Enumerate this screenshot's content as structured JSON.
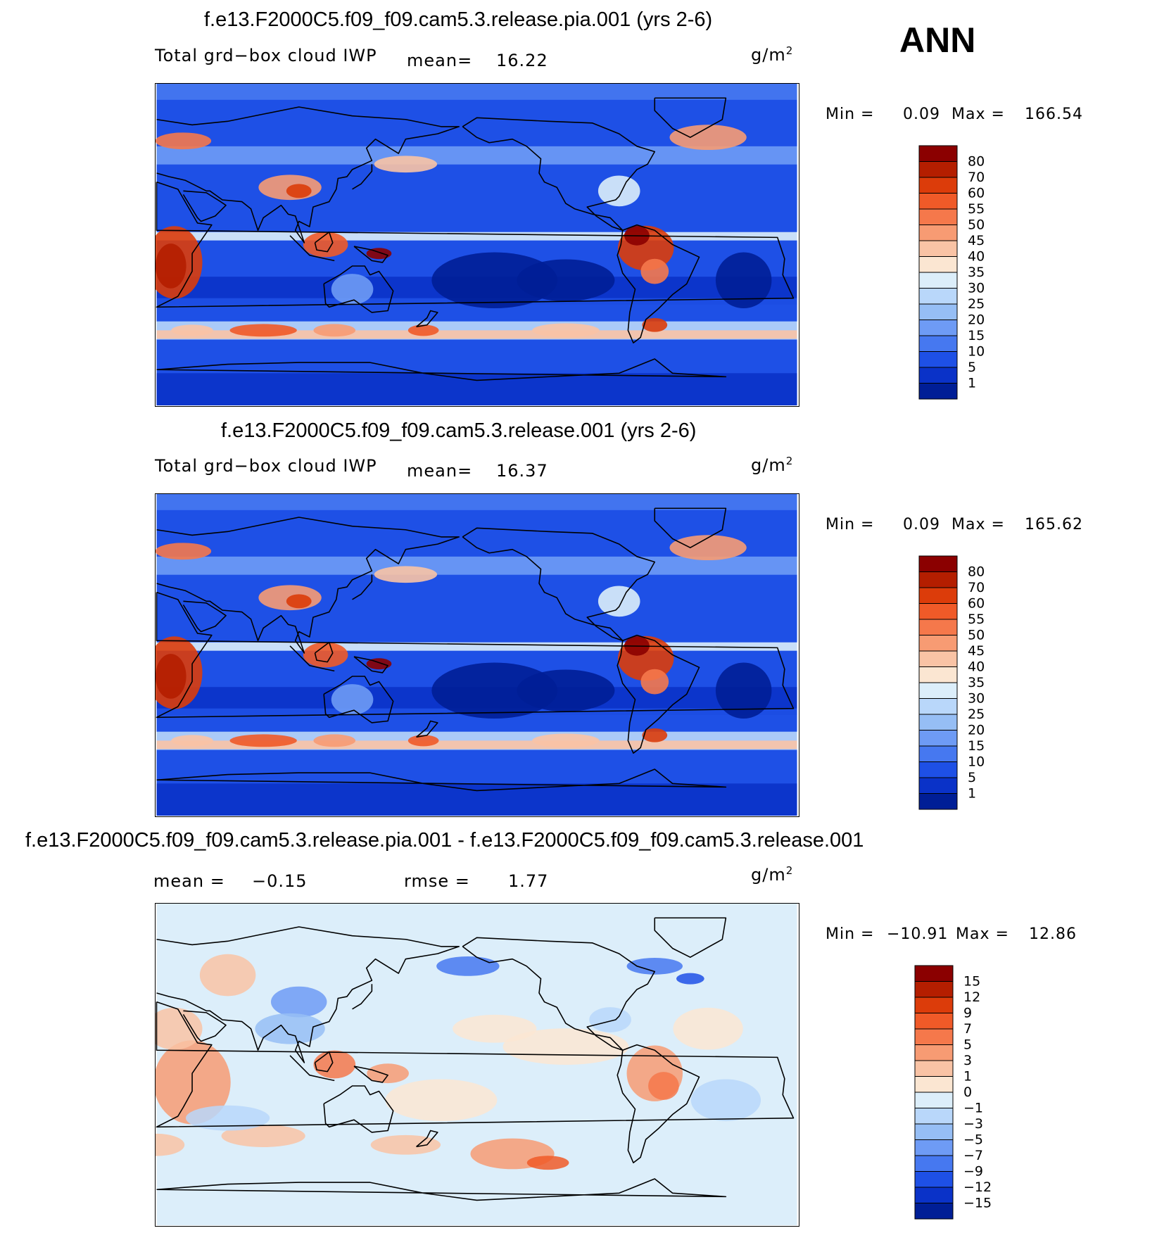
{
  "season": "ANN",
  "panels": [
    {
      "title": "f.e13.F2000C5.f09_f09.cam5.3.release.pia.001 (yrs 2-6)",
      "variable": "Total grd−box cloud IWP",
      "stat1_label": "mean=",
      "stat1_value": "16.22",
      "units": "g/m",
      "units_sup": "2",
      "min_label": "Min =",
      "min_value": "0.09",
      "max_label": "Max =",
      "max_value": "166.54"
    },
    {
      "title": "f.e13.F2000C5.f09_f09.cam5.3.release.001 (yrs 2-6)",
      "variable": "Total grd−box cloud IWP",
      "stat1_label": "mean=",
      "stat1_value": "16.37",
      "units": "g/m",
      "units_sup": "2",
      "min_label": "Min =",
      "min_value": "0.09",
      "max_label": "Max =",
      "max_value": "165.62"
    },
    {
      "title": "f.e13.F2000C5.f09_f09.cam5.3.release.pia.001 - f.e13.F2000C5.f09_f09.cam5.3.release.001",
      "stat1_label": "mean =",
      "stat1_value": "−0.15",
      "stat2_label": "rmse =",
      "stat2_value": "1.77",
      "units": "g/m",
      "units_sup": "2",
      "min_label": "Min =",
      "min_value": "−10.91",
      "max_label": "Max =",
      "max_value": "12.86"
    }
  ],
  "chart_data": [
    {
      "type": "heatmap",
      "title": "f.e13.F2000C5.f09_f09.cam5.3.release.pia.001 (yrs 2-6)",
      "variable": "Total grd−box cloud IWP",
      "units": "g/m2",
      "mean": 16.22,
      "min": 0.09,
      "max": 166.54,
      "levels": [
        "80",
        "70",
        "60",
        "55",
        "50",
        "45",
        "40",
        "35",
        "30",
        "25",
        "20",
        "15",
        "10",
        "5",
        "1"
      ],
      "colors": [
        "#8b0000",
        "#b41e00",
        "#dc3c0a",
        "#f05a28",
        "#f5784b",
        "#f79b73",
        "#f9c3a5",
        "#fbe6d2",
        "#dceefa",
        "#b9d7fa",
        "#96bef5",
        "#6e9bf5",
        "#4678f0",
        "#1e50e6",
        "#0a32c8",
        "#001e96"
      ]
    },
    {
      "type": "heatmap",
      "title": "f.e13.F2000C5.f09_f09.cam5.3.release.001 (yrs 2-6)",
      "variable": "Total grd−box cloud IWP",
      "units": "g/m2",
      "mean": 16.37,
      "min": 0.09,
      "max": 165.62,
      "levels": [
        "80",
        "70",
        "60",
        "55",
        "50",
        "45",
        "40",
        "35",
        "30",
        "25",
        "20",
        "15",
        "10",
        "5",
        "1"
      ],
      "colors": [
        "#8b0000",
        "#b41e00",
        "#dc3c0a",
        "#f05a28",
        "#f5784b",
        "#f79b73",
        "#f9c3a5",
        "#fbe6d2",
        "#dceefa",
        "#b9d7fa",
        "#96bef5",
        "#6e9bf5",
        "#4678f0",
        "#1e50e6",
        "#0a32c8",
        "#001e96"
      ]
    },
    {
      "type": "heatmap",
      "title": "f.e13.F2000C5.f09_f09.cam5.3.release.pia.001 - f.e13.F2000C5.f09_f09.cam5.3.release.001",
      "units": "g/m2",
      "mean": -0.15,
      "rmse": 1.77,
      "min": -10.91,
      "max": 12.86,
      "levels": [
        "15",
        "12",
        "9",
        "7",
        "5",
        "3",
        "1",
        "0",
        "−1",
        "−3",
        "−5",
        "−7",
        "−9",
        "−12",
        "−15"
      ],
      "colors": [
        "#8b0000",
        "#b41e00",
        "#dc3c0a",
        "#f05a28",
        "#f5784b",
        "#f79b73",
        "#f9c3a5",
        "#fbe6d2",
        "#dceefa",
        "#b9d7fa",
        "#96bef5",
        "#6e9bf5",
        "#4678f0",
        "#1e50e6",
        "#0a32c8",
        "#001e96"
      ]
    }
  ]
}
